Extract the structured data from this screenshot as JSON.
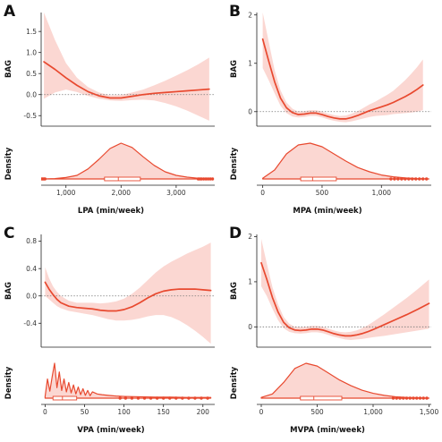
{
  "colors": {
    "line": "#e8492f",
    "band": "#fbd7d2",
    "density_fill": "#fbd7d2",
    "zero_line": "#777777",
    "axis": "#222222"
  },
  "chart_data": [
    {
      "id": "A",
      "type": "line",
      "panel_label": "A",
      "xlabel": "LPA (min/week)",
      "ylabel_top": "BAG",
      "ylabel_bottom": "Density",
      "xlim": [
        550,
        3700
      ],
      "ylim": [
        -0.75,
        1.95
      ],
      "xticks": [
        1000,
        2000,
        3000
      ],
      "xticklabels": [
        "1,000",
        "2,000",
        "3,000"
      ],
      "yticks": [
        -0.5,
        0.0,
        0.5,
        1.0,
        1.5
      ],
      "yticklabels": [
        "-0.5",
        "0.0",
        "0.5",
        "1.0",
        "1.5"
      ],
      "zero_reference": 0,
      "series": [
        {
          "x": [
            600,
            800,
            1000,
            1200,
            1400,
            1600,
            1800,
            2000,
            2200,
            2400,
            2600,
            2800,
            3000,
            3200,
            3400,
            3600
          ],
          "y": [
            0.78,
            0.6,
            0.4,
            0.22,
            0.07,
            -0.03,
            -0.08,
            -0.08,
            -0.04,
            0.0,
            0.03,
            0.05,
            0.07,
            0.09,
            0.11,
            0.13
          ],
          "lower": [
            -0.1,
            0.05,
            0.12,
            0.06,
            -0.03,
            -0.1,
            -0.14,
            -0.15,
            -0.13,
            -0.12,
            -0.14,
            -0.2,
            -0.28,
            -0.38,
            -0.5,
            -0.62
          ],
          "upper": [
            1.95,
            1.3,
            0.75,
            0.4,
            0.18,
            0.05,
            -0.02,
            -0.01,
            0.05,
            0.12,
            0.22,
            0.33,
            0.45,
            0.58,
            0.72,
            0.88
          ]
        }
      ],
      "density": {
        "x": [
          600,
          800,
          1000,
          1200,
          1400,
          1600,
          1800,
          2000,
          2200,
          2400,
          2600,
          2800,
          3000,
          3200,
          3400,
          3600
        ],
        "y": [
          0.0,
          0.01,
          0.04,
          0.1,
          0.28,
          0.55,
          0.85,
          1.0,
          0.88,
          0.62,
          0.38,
          0.2,
          0.1,
          0.05,
          0.02,
          0.0
        ]
      },
      "box": {
        "whisker_low": 650,
        "q1": 1700,
        "median": 1950,
        "q3": 2350,
        "whisker_high": 3350
      },
      "outliers": [
        560,
        580,
        600,
        620,
        3400,
        3430,
        3460,
        3500,
        3540,
        3580,
        3620,
        3660
      ]
    },
    {
      "id": "B",
      "type": "line",
      "panel_label": "B",
      "xlabel": "MPA (min/week)",
      "ylabel_top": "BAG",
      "ylabel_bottom": "Density",
      "xlim": [
        -50,
        1420
      ],
      "ylim": [
        -0.3,
        2.05
      ],
      "xticks": [
        0,
        500,
        1000
      ],
      "xticklabels": [
        "0",
        "500",
        "1,000"
      ],
      "yticks": [
        0,
        1,
        2
      ],
      "yticklabels": [
        "0",
        "1",
        "2"
      ],
      "zero_reference": 0,
      "series": [
        {
          "x": [
            0,
            50,
            100,
            150,
            200,
            250,
            300,
            350,
            400,
            450,
            500,
            550,
            600,
            650,
            700,
            750,
            800,
            850,
            900,
            950,
            1000,
            1050,
            1100,
            1150,
            1200,
            1250,
            1300,
            1350
          ],
          "y": [
            1.5,
            1.05,
            0.62,
            0.28,
            0.08,
            -0.02,
            -0.06,
            -0.05,
            -0.03,
            -0.03,
            -0.06,
            -0.1,
            -0.13,
            -0.15,
            -0.15,
            -0.12,
            -0.08,
            -0.03,
            0.02,
            0.06,
            0.1,
            0.14,
            0.19,
            0.25,
            0.31,
            0.38,
            0.46,
            0.55
          ],
          "lower": [
            0.9,
            0.65,
            0.38,
            0.12,
            -0.03,
            -0.1,
            -0.12,
            -0.11,
            -0.09,
            -0.09,
            -0.12,
            -0.16,
            -0.19,
            -0.21,
            -0.22,
            -0.2,
            -0.17,
            -0.14,
            -0.11,
            -0.09,
            -0.08,
            -0.07,
            -0.05,
            -0.04,
            -0.03,
            -0.02,
            0.0,
            0.03
          ],
          "upper": [
            2.05,
            1.45,
            0.86,
            0.44,
            0.19,
            0.06,
            0.0,
            0.01,
            0.03,
            0.03,
            0.0,
            -0.04,
            -0.07,
            -0.09,
            -0.08,
            -0.04,
            0.01,
            0.08,
            0.15,
            0.21,
            0.28,
            0.35,
            0.43,
            0.54,
            0.65,
            0.78,
            0.92,
            1.08
          ]
        }
      ],
      "density": {
        "x": [
          0,
          100,
          200,
          300,
          400,
          500,
          600,
          700,
          800,
          900,
          1000,
          1100,
          1200,
          1300,
          1400
        ],
        "y": [
          0.02,
          0.25,
          0.7,
          0.95,
          1.0,
          0.9,
          0.7,
          0.5,
          0.32,
          0.2,
          0.11,
          0.06,
          0.03,
          0.01,
          0.0
        ]
      },
      "box": {
        "whisker_low": 0,
        "q1": 320,
        "median": 420,
        "q3": 620,
        "whisker_high": 1050
      },
      "outliers": [
        1080,
        1110,
        1140,
        1170,
        1200,
        1230,
        1260,
        1290,
        1320,
        1350,
        1380
      ]
    },
    {
      "id": "C",
      "type": "line",
      "panel_label": "C",
      "xlabel": "VPA (min/week)",
      "ylabel_top": "BAG",
      "ylabel_bottom": "Density",
      "xlim": [
        -5,
        215
      ],
      "ylim": [
        -0.75,
        0.9
      ],
      "xticks": [
        0,
        50,
        100,
        150,
        200
      ],
      "xticklabels": [
        "0",
        "50",
        "100",
        "150",
        "200"
      ],
      "yticks": [
        -0.4,
        0.0,
        0.4,
        0.8
      ],
      "yticklabels": [
        "-0.4",
        "0.0",
        "0.4",
        "0.8"
      ],
      "zero_reference": 0,
      "series": [
        {
          "x": [
            0,
            5,
            10,
            15,
            20,
            30,
            40,
            50,
            60,
            70,
            80,
            90,
            100,
            110,
            120,
            130,
            140,
            150,
            160,
            170,
            180,
            190,
            200,
            210
          ],
          "y": [
            0.2,
            0.1,
            0.02,
            -0.05,
            -0.1,
            -0.15,
            -0.17,
            -0.18,
            -0.19,
            -0.21,
            -0.22,
            -0.22,
            -0.2,
            -0.16,
            -0.1,
            -0.03,
            0.03,
            0.07,
            0.09,
            0.1,
            0.1,
            0.1,
            0.09,
            0.08
          ],
          "lower": [
            0.0,
            -0.05,
            -0.1,
            -0.15,
            -0.18,
            -0.22,
            -0.24,
            -0.26,
            -0.28,
            -0.31,
            -0.34,
            -0.36,
            -0.36,
            -0.35,
            -0.33,
            -0.3,
            -0.28,
            -0.28,
            -0.31,
            -0.36,
            -0.43,
            -0.51,
            -0.6,
            -0.7
          ],
          "upper": [
            0.42,
            0.26,
            0.14,
            0.06,
            0.0,
            -0.07,
            -0.1,
            -0.1,
            -0.1,
            -0.11,
            -0.1,
            -0.08,
            -0.04,
            0.03,
            0.12,
            0.23,
            0.34,
            0.43,
            0.5,
            0.56,
            0.62,
            0.67,
            0.72,
            0.78
          ]
        }
      ],
      "density": {
        "x": [
          0,
          3,
          6,
          9,
          12,
          15,
          18,
          21,
          24,
          27,
          30,
          33,
          36,
          39,
          42,
          45,
          48,
          51,
          54,
          57,
          60,
          66,
          72,
          80,
          90,
          100,
          120,
          140,
          160,
          180,
          200,
          210
        ],
        "y": [
          0.05,
          0.55,
          0.2,
          0.62,
          1.0,
          0.3,
          0.75,
          0.22,
          0.55,
          0.18,
          0.45,
          0.15,
          0.38,
          0.12,
          0.32,
          0.1,
          0.27,
          0.08,
          0.22,
          0.07,
          0.18,
          0.12,
          0.1,
          0.08,
          0.06,
          0.05,
          0.04,
          0.03,
          0.03,
          0.02,
          0.02,
          0.02
        ]
      },
      "box": {
        "whisker_low": 0,
        "q1": 10,
        "median": 22,
        "q3": 40,
        "whisker_high": 80
      },
      "outliers": [
        95,
        102,
        110,
        118,
        126,
        134,
        142,
        150,
        158,
        166,
        174,
        182,
        190,
        198,
        206
      ]
    },
    {
      "id": "D",
      "type": "line",
      "panel_label": "D",
      "xlabel": "MVPA (min/week)",
      "ylabel_top": "BAG",
      "ylabel_bottom": "Density",
      "xlim": [
        -40,
        1520
      ],
      "ylim": [
        -0.45,
        2.05
      ],
      "xticks": [
        0,
        500,
        1000,
        1500
      ],
      "xticklabels": [
        "0",
        "500",
        "1,000",
        "1,500"
      ],
      "yticks": [
        0,
        1,
        2
      ],
      "yticklabels": [
        "0",
        "1",
        "2"
      ],
      "zero_reference": 0,
      "series": [
        {
          "x": [
            0,
            50,
            100,
            150,
            200,
            250,
            300,
            350,
            400,
            450,
            500,
            550,
            600,
            650,
            700,
            750,
            800,
            850,
            900,
            950,
            1000,
            1100,
            1200,
            1300,
            1400,
            1500
          ],
          "y": [
            1.42,
            1.05,
            0.65,
            0.33,
            0.1,
            -0.02,
            -0.07,
            -0.08,
            -0.07,
            -0.05,
            -0.05,
            -0.07,
            -0.11,
            -0.15,
            -0.18,
            -0.2,
            -0.2,
            -0.18,
            -0.15,
            -0.11,
            -0.06,
            0.05,
            0.16,
            0.27,
            0.39,
            0.52
          ],
          "lower": [
            0.9,
            0.68,
            0.4,
            0.15,
            -0.03,
            -0.11,
            -0.14,
            -0.15,
            -0.14,
            -0.12,
            -0.12,
            -0.14,
            -0.18,
            -0.22,
            -0.25,
            -0.28,
            -0.29,
            -0.28,
            -0.27,
            -0.25,
            -0.23,
            -0.2,
            -0.16,
            -0.12,
            -0.08,
            -0.04
          ],
          "upper": [
            1.95,
            1.4,
            0.88,
            0.5,
            0.22,
            0.07,
            0.0,
            -0.01,
            0.0,
            0.02,
            0.02,
            0.0,
            -0.04,
            -0.08,
            -0.11,
            -0.12,
            -0.11,
            -0.08,
            -0.03,
            0.03,
            0.11,
            0.28,
            0.46,
            0.64,
            0.84,
            1.05
          ]
        }
      ],
      "density": {
        "x": [
          0,
          100,
          200,
          300,
          400,
          500,
          600,
          700,
          800,
          900,
          1000,
          1100,
          1200,
          1300,
          1400,
          1500
        ],
        "y": [
          0.02,
          0.12,
          0.45,
          0.85,
          1.0,
          0.92,
          0.72,
          0.52,
          0.36,
          0.23,
          0.14,
          0.08,
          0.04,
          0.02,
          0.01,
          0.0
        ]
      },
      "box": {
        "whisker_low": 0,
        "q1": 350,
        "median": 470,
        "q3": 720,
        "whisker_high": 1150
      },
      "outliers": [
        1180,
        1210,
        1240,
        1270,
        1300,
        1330,
        1360,
        1390,
        1420,
        1450,
        1480
      ]
    }
  ]
}
